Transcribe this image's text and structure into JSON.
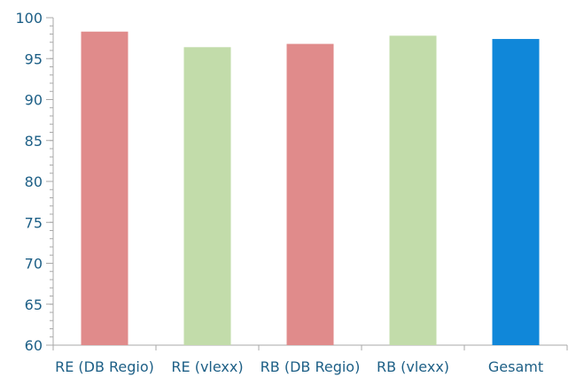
{
  "chart_data": {
    "type": "bar",
    "title": "",
    "xlabel": "",
    "ylabel": "",
    "categories": [
      "RE (DB Regio)",
      "RE (vlexx)",
      "RB (DB Regio)",
      "RB (vlexx)",
      "Gesamt"
    ],
    "values": [
      98.3,
      96.4,
      96.8,
      97.8,
      97.4
    ],
    "colors": [
      "#e08b8b",
      "#c2dcaa",
      "#e08b8b",
      "#c2dcaa",
      "#1087d9"
    ],
    "ylim": [
      60,
      100
    ],
    "y_ticks": [
      "60",
      "65",
      "70",
      "75",
      "80",
      "85",
      "90",
      "95",
      "100"
    ],
    "y_minor_step": 1,
    "grid": false,
    "legend": "none"
  }
}
